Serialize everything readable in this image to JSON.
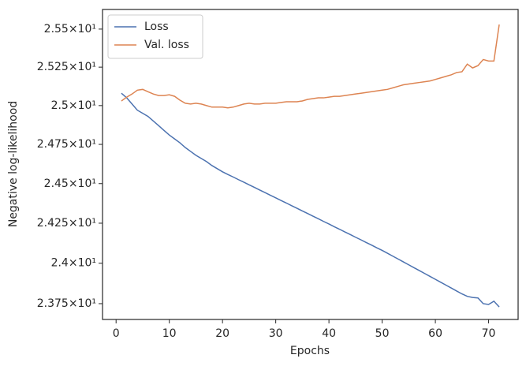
{
  "chart_data": {
    "type": "line",
    "xlabel": "Epochs",
    "ylabel": "Negative log-likelihood",
    "x": [
      1,
      2,
      3,
      4,
      5,
      6,
      7,
      8,
      9,
      10,
      11,
      12,
      13,
      14,
      15,
      16,
      17,
      18,
      19,
      20,
      21,
      22,
      23,
      24,
      25,
      26,
      27,
      28,
      29,
      30,
      31,
      32,
      33,
      34,
      35,
      36,
      37,
      38,
      39,
      40,
      41,
      42,
      43,
      44,
      45,
      46,
      47,
      48,
      49,
      50,
      51,
      52,
      53,
      54,
      55,
      56,
      57,
      58,
      59,
      60,
      61,
      62,
      63,
      64,
      65,
      66,
      67,
      68,
      69,
      70,
      71,
      72
    ],
    "series": [
      {
        "name": "Loss",
        "color": "#4c72b0",
        "values": [
          25.08,
          25.05,
          25.01,
          24.97,
          24.95,
          24.93,
          24.9,
          24.87,
          24.84,
          24.81,
          24.785,
          24.76,
          24.73,
          24.705,
          24.68,
          24.66,
          24.64,
          24.615,
          24.595,
          24.575,
          24.558,
          24.542,
          24.525,
          24.509,
          24.492,
          24.476,
          24.459,
          24.443,
          24.426,
          24.41,
          24.393,
          24.377,
          24.36,
          24.344,
          24.327,
          24.311,
          24.294,
          24.278,
          24.261,
          24.245,
          24.228,
          24.212,
          24.195,
          24.179,
          24.162,
          24.146,
          24.129,
          24.113,
          24.096,
          24.08,
          24.062,
          24.044,
          24.026,
          24.008,
          23.99,
          23.972,
          23.954,
          23.936,
          23.918,
          23.9,
          23.882,
          23.864,
          23.846,
          23.828,
          23.81,
          23.795,
          23.788,
          23.785,
          23.75,
          23.745,
          23.765,
          23.73
        ]
      },
      {
        "name": "Val. loss",
        "color": "#dd8452",
        "values": [
          25.03,
          25.055,
          25.075,
          25.1,
          25.105,
          25.09,
          25.075,
          25.065,
          25.065,
          25.07,
          25.06,
          25.035,
          25.015,
          25.01,
          25.015,
          25.01,
          25,
          24.99,
          24.99,
          24.99,
          24.985,
          24.99,
          25,
          25.01,
          25.015,
          25.01,
          25.01,
          25.015,
          25.015,
          25.015,
          25.02,
          25.025,
          25.025,
          25.025,
          25.03,
          25.04,
          25.045,
          25.05,
          25.05,
          25.055,
          25.06,
          25.06,
          25.065,
          25.07,
          25.075,
          25.08,
          25.085,
          25.09,
          25.095,
          25.1,
          25.105,
          25.115,
          25.125,
          25.135,
          25.14,
          25.145,
          25.15,
          25.155,
          25.16,
          25.17,
          25.18,
          25.19,
          25.2,
          25.215,
          25.22,
          25.27,
          25.245,
          25.26,
          25.3,
          25.29,
          25.29,
          25.53
        ]
      }
    ],
    "xlim": [
      -2.55,
      75.55
    ],
    "xticks": [
      0,
      10,
      20,
      30,
      40,
      50,
      60,
      70
    ],
    "ylim": [
      23.653,
      25.63
    ],
    "log_y": true,
    "yticks": [
      {
        "value": 23.75,
        "label": "2.375×10¹"
      },
      {
        "value": 24,
        "label": "2.4×10¹"
      },
      {
        "value": 24.25,
        "label": "2.425×10¹"
      },
      {
        "value": 24.5,
        "label": "2.45×10¹"
      },
      {
        "value": 24.75,
        "label": "2.475×10¹"
      },
      {
        "value": 25,
        "label": "2.5×10¹"
      },
      {
        "value": 25.25,
        "label": "2.525×10¹"
      },
      {
        "value": 25.5,
        "label": "2.55×10¹"
      }
    ],
    "grid": false,
    "legend": "upper left"
  }
}
